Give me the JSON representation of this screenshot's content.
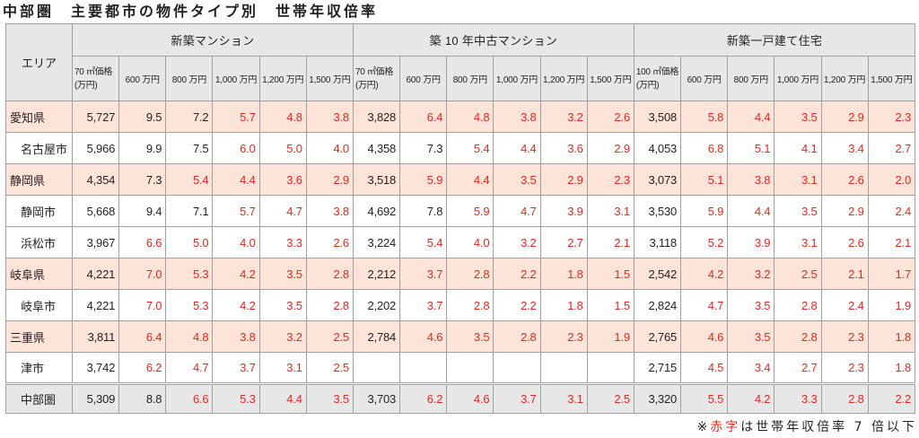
{
  "colors": {
    "red_text": "#e5281f",
    "header_fill": "#e7e7e7",
    "prefecture_fill": "#fde3d8",
    "total_fill": "#e7e7e7",
    "grid_line": "#a0a0a0",
    "text": "#231f20"
  },
  "chart_data": {
    "type": "table",
    "title": "中部圏　主要都市の物件タイプ別　世帯年収倍率",
    "area_header": "エリア",
    "groups": [
      {
        "name": "新築マンション",
        "price_header": [
          "70 ㎡価格",
          "(万円)"
        ],
        "income_headers": [
          "600 万円",
          "800 万円",
          "1,000 万円",
          "1,200 万円",
          "1,500 万円"
        ]
      },
      {
        "name": "築 10 年中古マンション",
        "price_header": [
          "70 ㎡価格",
          "(万円)"
        ],
        "income_headers": [
          "600 万円",
          "800 万円",
          "1,000 万円",
          "1,200 万円",
          "1,500 万円"
        ]
      },
      {
        "name": "新築一戸建て住宅",
        "price_header": [
          "100 ㎡価格",
          "(万円)"
        ],
        "income_headers": [
          "600 万円",
          "800 万円",
          "1,000 万円",
          "1,200 万円",
          "1,500 万円"
        ]
      }
    ],
    "prefectures": [
      {
        "area": "愛知県",
        "cells": [
          "5,727",
          "9.5",
          "7.2",
          "5.7",
          "4.8",
          "3.8",
          "3,828",
          "6.4",
          "4.8",
          "3.8",
          "3.2",
          "2.6",
          "3,508",
          "5.8",
          "4.4",
          "3.5",
          "2.9",
          "2.3"
        ],
        "cities": [
          {
            "area": "名古屋市",
            "cells": [
              "5,966",
              "9.9",
              "7.5",
              "6.0",
              "5.0",
              "4.0",
              "4,358",
              "7.3",
              "5.4",
              "4.4",
              "3.6",
              "2.9",
              "4,053",
              "6.8",
              "5.1",
              "4.1",
              "3.4",
              "2.7"
            ]
          }
        ]
      },
      {
        "area": "静岡県",
        "cells": [
          "4,354",
          "7.3",
          "5.4",
          "4.4",
          "3.6",
          "2.9",
          "3,518",
          "5.9",
          "4.4",
          "3.5",
          "2.9",
          "2.3",
          "3,073",
          "5.1",
          "3.8",
          "3.1",
          "2.6",
          "2.0"
        ],
        "cities": [
          {
            "area": "静岡市",
            "cells": [
              "5,668",
              "9.4",
              "7.1",
              "5.7",
              "4.7",
              "3.8",
              "4,692",
              "7.8",
              "5.9",
              "4.7",
              "3.9",
              "3.1",
              "3,530",
              "5.9",
              "4.4",
              "3.5",
              "2.9",
              "2.4"
            ]
          },
          {
            "area": "浜松市",
            "cells": [
              "3,967",
              "6.6",
              "5.0",
              "4.0",
              "3.3",
              "2.6",
              "3,224",
              "5.4",
              "4.0",
              "3.2",
              "2.7",
              "2.1",
              "3,118",
              "5.2",
              "3.9",
              "3.1",
              "2.6",
              "2.1"
            ]
          }
        ]
      },
      {
        "area": "岐阜県",
        "cells": [
          "4,221",
          "7.0",
          "5.3",
          "4.2",
          "3.5",
          "2.8",
          "2,212",
          "3.7",
          "2.8",
          "2.2",
          "1.8",
          "1.5",
          "2,542",
          "4.2",
          "3.2",
          "2.5",
          "2.1",
          "1.7"
        ],
        "cities": [
          {
            "area": "岐阜市",
            "cells": [
              "4,221",
              "7.0",
              "5.3",
              "4.2",
              "3.5",
              "2.8",
              "2,202",
              "3.7",
              "2.8",
              "2.2",
              "1.8",
              "1.5",
              "2,824",
              "4.7",
              "3.5",
              "2.8",
              "2.4",
              "1.9"
            ]
          }
        ]
      },
      {
        "area": "三重県",
        "cells": [
          "3,811",
          "6.4",
          "4.8",
          "3.8",
          "3.2",
          "2.5",
          "2,784",
          "4.6",
          "3.5",
          "2.8",
          "2.3",
          "1.9",
          "2,765",
          "4.6",
          "3.5",
          "2.8",
          "2.3",
          "1.8"
        ],
        "cities": [
          {
            "area": "津市",
            "cells": [
              "3,742",
              "6.2",
              "4.7",
              "3.7",
              "3.1",
              "2.5",
              null,
              null,
              null,
              null,
              null,
              null,
              "2,715",
              "4.5",
              "3.4",
              "2.7",
              "2.3",
              "1.8"
            ]
          }
        ]
      }
    ],
    "region_total": {
      "area": "中部圏",
      "cells": [
        "5,309",
        "8.8",
        "6.6",
        "5.3",
        "4.4",
        "3.5",
        "3,703",
        "6.2",
        "4.6",
        "3.7",
        "3.1",
        "2.5",
        "3,320",
        "5.5",
        "4.2",
        "3.3",
        "2.8",
        "2.2"
      ]
    },
    "note": {
      "mark": "※",
      "highlight": "赤字",
      "text": "は世帯年収倍率 7 倍以下"
    }
  }
}
